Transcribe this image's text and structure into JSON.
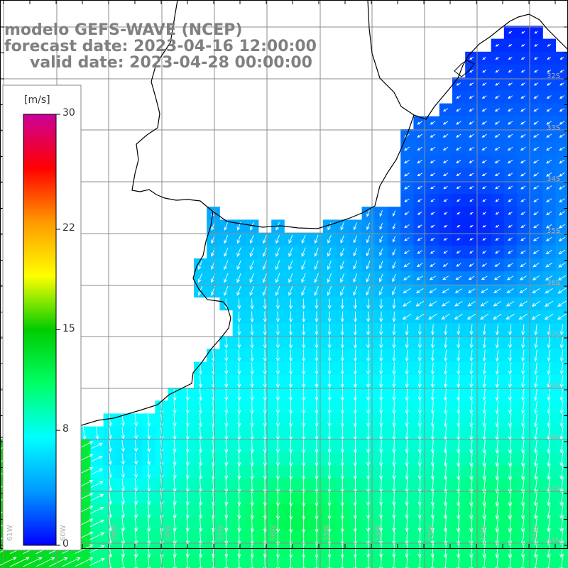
{
  "header": {
    "line1": "modelo GEFS-WAVE (NCEP)",
    "line2": "forecast date: 2023-04-16 12:00:00",
    "line3": "valid date: 2023-04-28 00:00:00"
  },
  "colorbar": {
    "unit": "[m/s]",
    "ticks": [
      {
        "label": "30",
        "value": 30
      },
      {
        "label": "22",
        "value": 22
      },
      {
        "label": "15",
        "value": 15
      },
      {
        "label": "8",
        "value": 8
      },
      {
        "label": "0",
        "value": 0
      }
    ],
    "stops": [
      "#0000ff",
      "#0099ff",
      "#00ffff",
      "#00ff66",
      "#00cc00",
      "#ffff00",
      "#ff9900",
      "#ff0000",
      "#cc0099"
    ]
  },
  "latitude_labels": [
    {
      "label": "32S"
    },
    {
      "label": "33S"
    },
    {
      "label": "34S"
    },
    {
      "label": "35S"
    },
    {
      "label": "36S"
    },
    {
      "label": "37S"
    },
    {
      "label": "38S"
    },
    {
      "label": "39S"
    },
    {
      "label": "40S"
    },
    {
      "label": "41S"
    }
  ],
  "longitude_labels": [
    {
      "label": "61W"
    },
    {
      "label": "60W"
    },
    {
      "label": "59W"
    },
    {
      "label": "58W"
    },
    {
      "label": "57W"
    },
    {
      "label": "56W"
    },
    {
      "label": "55W"
    },
    {
      "label": "54W"
    },
    {
      "label": "53W"
    },
    {
      "label": "52W"
    },
    {
      "label": "51W"
    }
  ],
  "colors": {
    "background": "#ffffff",
    "grid": "#8c8c8c",
    "coast": "#000000",
    "arrow": "#ffffff",
    "title": "#808080"
  }
}
